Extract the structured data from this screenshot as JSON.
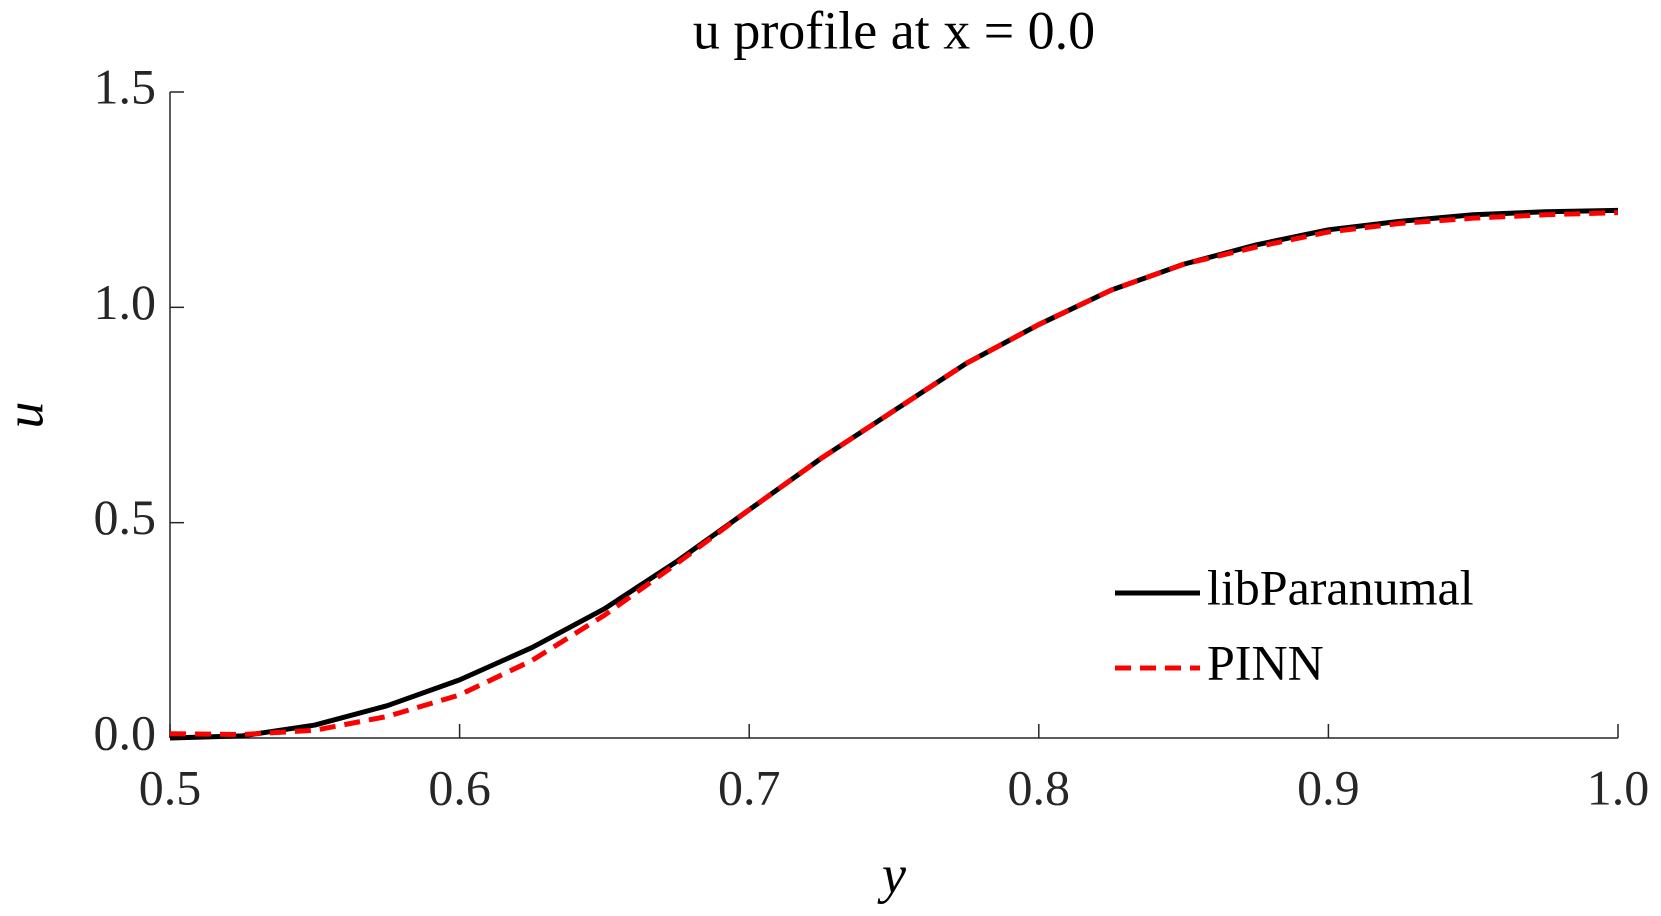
{
  "chart_data": {
    "type": "line",
    "title": "u profile at x = 0.0",
    "x_label": "y",
    "y_label": "u",
    "x": [
      0.5,
      0.525,
      0.55,
      0.575,
      0.6,
      0.625,
      0.65,
      0.675,
      0.7,
      0.725,
      0.75,
      0.775,
      0.8,
      0.825,
      0.85,
      0.875,
      0.9,
      0.925,
      0.95,
      0.975,
      1.0
    ],
    "series": [
      {
        "name": "libParanumal",
        "color": "#000000",
        "dash": false,
        "values": [
          0,
          0.005,
          0.03,
          0.075,
          0.135,
          0.21,
          0.3,
          0.41,
          0.53,
          0.65,
          0.76,
          0.87,
          0.96,
          1.04,
          1.1,
          1.145,
          1.18,
          1.2,
          1.215,
          1.222,
          1.225
        ]
      },
      {
        "name": "PINN",
        "color": "#ff0000",
        "dash": true,
        "values": [
          0.01,
          0.008,
          0.018,
          0.05,
          0.1,
          0.18,
          0.285,
          0.405,
          0.53,
          0.65,
          0.76,
          0.87,
          0.96,
          1.04,
          1.1,
          1.14,
          1.175,
          1.195,
          1.207,
          1.215,
          1.22
        ]
      }
    ],
    "xlim": [
      0.5,
      1.0
    ],
    "xticks": [
      0.5,
      0.6,
      0.7,
      0.8,
      0.9,
      {
        "value": 1.0,
        "label": "1.0"
      }
    ],
    "ylim": [
      0,
      1.5
    ],
    "yticks": [
      {
        "value": 0,
        "label": "0.0"
      },
      0.5,
      {
        "value": 1.0,
        "label": "1.0"
      },
      1.5
    ],
    "legend": "lower right"
  }
}
